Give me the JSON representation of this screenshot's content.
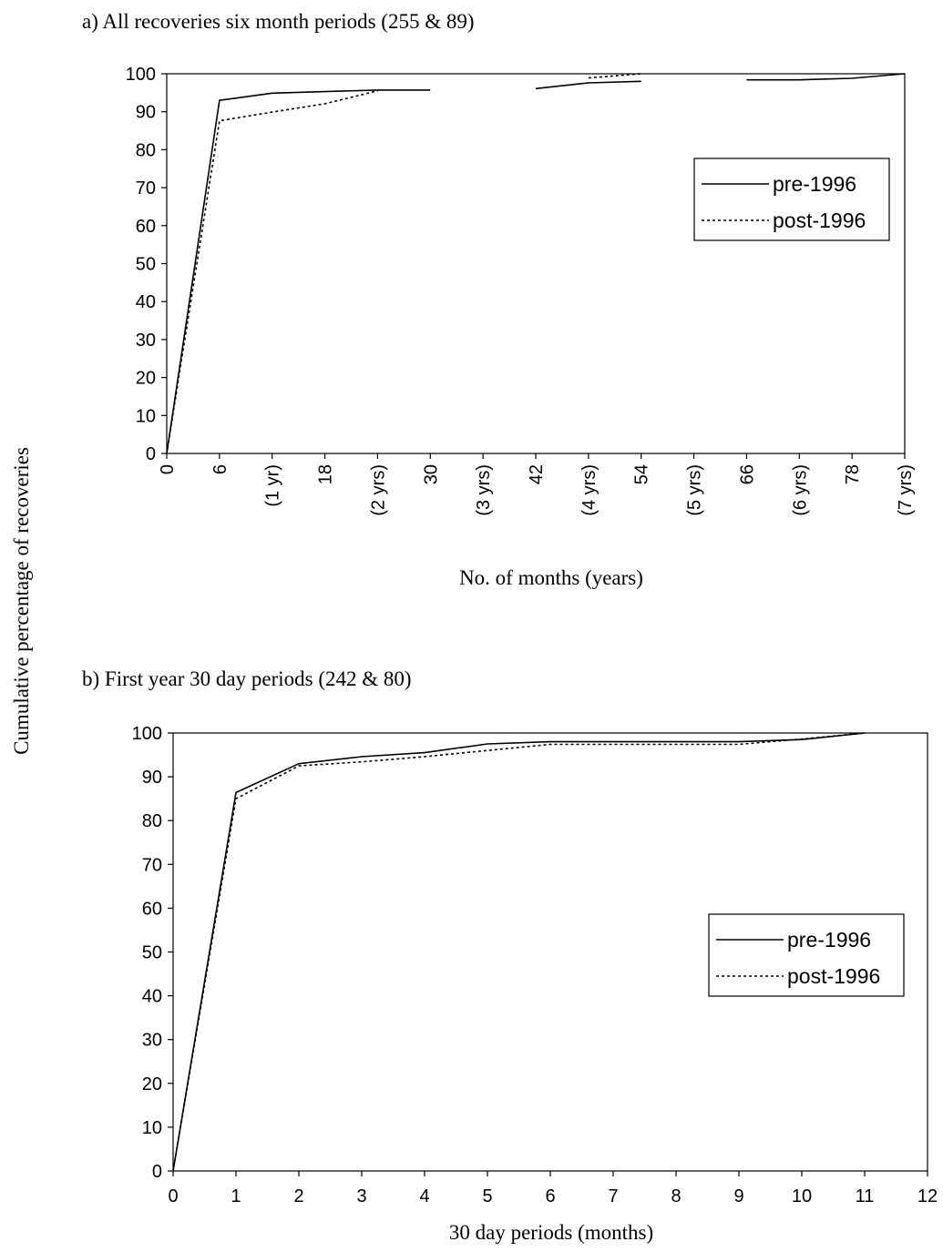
{
  "shared_ylabel": "Cumulative percentage of recoveries",
  "colors": {
    "line": "#000000",
    "background": "#ffffff"
  },
  "chart_data": [
    {
      "type": "line",
      "title": "a)  All recoveries six month periods (255 & 89)",
      "xlabel": "No. of months (years)",
      "ylabel": "",
      "xlim": [
        0,
        84
      ],
      "ylim": [
        0,
        100
      ],
      "yticks": [
        0,
        10,
        20,
        30,
        40,
        50,
        60,
        70,
        80,
        90,
        100
      ],
      "xtick_values": [
        0,
        6,
        12,
        18,
        24,
        30,
        36,
        42,
        48,
        54,
        60,
        66,
        72,
        78,
        84
      ],
      "xtick_labels": [
        "0",
        "6",
        "(1 yr)",
        "18",
        "(2 yrs)",
        "30",
        "(3 yrs)",
        "42",
        "(4 yrs)",
        "54",
        "(5 yrs)",
        "66",
        "(6 yrs)",
        "78",
        "(7 yrs)"
      ],
      "xtick_rotation": "vertical",
      "grid": false,
      "legend_position": "right",
      "series": [
        {
          "name": "pre-1996",
          "style": "solid",
          "segments": [
            [
              [
                0,
                0
              ],
              [
                6,
                93
              ],
              [
                12,
                94.9
              ],
              [
                18,
                95.3
              ],
              [
                24,
                95.7
              ],
              [
                30,
                95.7
              ]
            ],
            [
              [
                42,
                96.1
              ],
              [
                48,
                97.6
              ],
              [
                54,
                98
              ]
            ],
            [
              [
                66,
                98.4
              ],
              [
                72,
                98.4
              ],
              [
                78,
                98.8
              ],
              [
                84,
                100
              ]
            ]
          ]
        },
        {
          "name": "post-1996",
          "style": "dotted",
          "segments": [
            [
              [
                0,
                0
              ],
              [
                6,
                87.6
              ],
              [
                12,
                89.9
              ],
              [
                18,
                92.1
              ],
              [
                24,
                95.5
              ]
            ],
            [
              [
                48,
                98.9
              ],
              [
                54,
                100
              ]
            ]
          ]
        }
      ]
    },
    {
      "type": "line",
      "title": "b) First year 30 day periods (242 & 80)",
      "xlabel": "30 day periods (months)",
      "ylabel": "",
      "xlim": [
        0,
        12
      ],
      "ylim": [
        0,
        100
      ],
      "yticks": [
        0,
        10,
        20,
        30,
        40,
        50,
        60,
        70,
        80,
        90,
        100
      ],
      "xtick_values": [
        0,
        1,
        2,
        3,
        4,
        5,
        6,
        7,
        8,
        9,
        10,
        11,
        12
      ],
      "xtick_labels": [
        "0",
        "1",
        "2",
        "3",
        "4",
        "5",
        "6",
        "7",
        "8",
        "9",
        "10",
        "11",
        "12"
      ],
      "grid": false,
      "legend_position": "right",
      "series": [
        {
          "name": "pre-1996",
          "style": "solid",
          "segments": [
            [
              [
                0,
                0
              ],
              [
                1,
                86.4
              ],
              [
                2,
                93
              ],
              [
                3,
                94.6
              ],
              [
                4,
                95.5
              ],
              [
                5,
                97.5
              ],
              [
                6,
                98
              ],
              [
                7,
                98
              ],
              [
                8,
                98
              ],
              [
                9,
                98
              ],
              [
                10,
                98.5
              ],
              [
                11,
                100
              ]
            ]
          ]
        },
        {
          "name": "post-1996",
          "style": "dotted",
          "segments": [
            [
              [
                0,
                0
              ],
              [
                1,
                85
              ],
              [
                2,
                92.5
              ],
              [
                3,
                93.4
              ],
              [
                4,
                94.6
              ],
              [
                5,
                96
              ],
              [
                6,
                97.4
              ],
              [
                7,
                97.4
              ],
              [
                8,
                97.4
              ],
              [
                9,
                97.4
              ],
              [
                10,
                98.6
              ],
              [
                11,
                100
              ]
            ]
          ]
        }
      ]
    }
  ]
}
